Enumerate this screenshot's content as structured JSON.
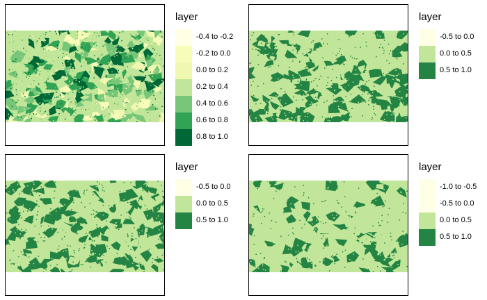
{
  "panels": [
    {
      "legend": {
        "title": "layer",
        "items": [
          {
            "label": "-0.4 to -0.2",
            "color": "#ffffe5"
          },
          {
            "label": "-0.2 to 0.0",
            "color": "#f7fcb9"
          },
          {
            "label": "0.0 to 0.2",
            "color": "#f0f7b0"
          },
          {
            "label": "0.2 to 0.4",
            "color": "#c2e699"
          },
          {
            "label": "0.4 to 0.6",
            "color": "#78c679"
          },
          {
            "label": "0.6 to 0.8",
            "color": "#31a354"
          },
          {
            "label": "0.8 to 1.0",
            "color": "#006837"
          }
        ]
      }
    },
    {
      "legend": {
        "title": "layer",
        "items": [
          {
            "label": "-0.5 to 0.0",
            "color": "#ffffe5"
          },
          {
            "label": "0.0 to 0.5",
            "color": "#c2e699"
          },
          {
            "label": "0.5 to 1.0",
            "color": "#238443"
          }
        ]
      }
    },
    {
      "legend": {
        "title": "layer",
        "items": [
          {
            "label": "-0.5 to 0.0",
            "color": "#ffffe5"
          },
          {
            "label": "0.0 to 0.5",
            "color": "#c2e699"
          },
          {
            "label": "0.5 to 1.0",
            "color": "#238443"
          }
        ]
      }
    },
    {
      "legend": {
        "title": "layer",
        "items": [
          {
            "label": "-1.0 to -0.5",
            "color": "#ffffe5"
          },
          {
            "label": "-0.5 to 0.0",
            "color": "#ffffe5"
          },
          {
            "label": "0.0 to 0.5",
            "color": "#c2e699"
          },
          {
            "label": "0.5 to 1.0",
            "color": "#238443"
          }
        ]
      }
    }
  ]
}
